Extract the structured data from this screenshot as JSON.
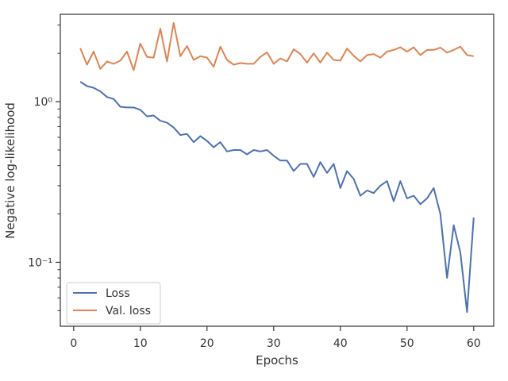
{
  "chart_data": {
    "type": "line",
    "title": "",
    "xlabel": "Epochs",
    "ylabel": "Negative log-likelihood",
    "xlim": [
      -2,
      63
    ],
    "ylim": [
      0.04,
      3.5
    ],
    "yscale": "log",
    "grid": false,
    "legend_position": "lower-left",
    "x_ticks": [
      0,
      10,
      20,
      30,
      40,
      50,
      60
    ],
    "x_tick_labels": [
      "0",
      "10",
      "20",
      "30",
      "40",
      "50",
      "60"
    ],
    "y_ticks": [
      0.1,
      1
    ],
    "y_tick_labels": [
      "10⁻¹",
      "10⁰"
    ],
    "y_minor_ticks": [
      0.05,
      0.06,
      0.07,
      0.08,
      0.09,
      0.2,
      0.3,
      0.4,
      0.5,
      0.6,
      0.7,
      0.8,
      0.9,
      2,
      3
    ],
    "x": [
      1,
      2,
      3,
      4,
      5,
      6,
      7,
      8,
      9,
      10,
      11,
      12,
      13,
      14,
      15,
      16,
      17,
      18,
      19,
      20,
      21,
      22,
      23,
      24,
      25,
      26,
      27,
      28,
      29,
      30,
      31,
      32,
      33,
      34,
      35,
      36,
      37,
      38,
      39,
      40,
      41,
      42,
      43,
      44,
      45,
      46,
      47,
      48,
      49,
      50,
      51,
      52,
      53,
      54,
      55,
      56,
      57,
      58,
      59,
      60
    ],
    "series": [
      {
        "name": "Loss",
        "color": "#4c72b0",
        "values": [
          1.33,
          1.25,
          1.22,
          1.16,
          1.07,
          1.04,
          0.93,
          0.92,
          0.92,
          0.89,
          0.81,
          0.82,
          0.76,
          0.74,
          0.69,
          0.62,
          0.63,
          0.56,
          0.61,
          0.57,
          0.52,
          0.56,
          0.49,
          0.5,
          0.5,
          0.47,
          0.5,
          0.49,
          0.5,
          0.46,
          0.43,
          0.43,
          0.37,
          0.41,
          0.41,
          0.34,
          0.42,
          0.36,
          0.41,
          0.29,
          0.37,
          0.33,
          0.26,
          0.28,
          0.27,
          0.3,
          0.32,
          0.24,
          0.32,
          0.25,
          0.26,
          0.23,
          0.25,
          0.29,
          0.2,
          0.08,
          0.17,
          0.115,
          0.049,
          0.19
        ]
      },
      {
        "name": "Val. loss",
        "color": "#dd8452",
        "values": [
          2.15,
          1.7,
          2.05,
          1.6,
          1.78,
          1.72,
          1.8,
          2.05,
          1.57,
          2.3,
          1.9,
          1.88,
          2.85,
          1.78,
          3.1,
          1.92,
          2.22,
          1.82,
          1.92,
          1.88,
          1.65,
          2.2,
          1.82,
          1.7,
          1.74,
          1.72,
          1.72,
          1.9,
          2.03,
          1.72,
          1.86,
          1.78,
          2.12,
          1.98,
          1.75,
          2.0,
          1.75,
          2.02,
          1.82,
          1.8,
          2.14,
          1.93,
          1.78,
          1.95,
          1.98,
          1.88,
          2.05,
          2.1,
          2.18,
          2.05,
          2.18,
          1.95,
          2.1,
          2.1,
          2.17,
          2.02,
          2.1,
          2.2,
          1.95,
          1.92
        ]
      }
    ]
  }
}
